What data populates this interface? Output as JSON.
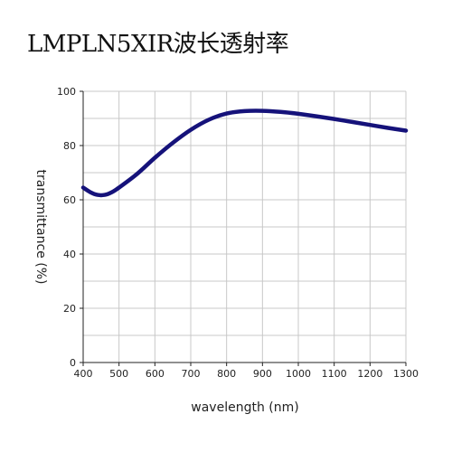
{
  "title": "LMPLN5XIR波长透射率",
  "chart_data": {
    "type": "line",
    "title": "LMPLN5XIR波长透射率",
    "xlabel": "wavelength (nm)",
    "ylabel": "transmittance (%)",
    "xlim": [
      400,
      1300
    ],
    "ylim": [
      0,
      100
    ],
    "xticks": [
      400,
      500,
      600,
      700,
      800,
      900,
      1000,
      1100,
      1200,
      1300
    ],
    "yticks": [
      0,
      20,
      40,
      60,
      80,
      100
    ],
    "grid": true,
    "colors": {
      "line": "#15127a",
      "grid": "#c8c8c8",
      "axis": "#222222"
    },
    "series": [
      {
        "x": [
          400,
          420,
          440,
          460,
          480,
          500,
          550,
          600,
          650,
          700,
          750,
          800,
          850,
          900,
          950,
          1000,
          1050,
          1100,
          1150,
          1200,
          1250,
          1300
        ],
        "y": [
          64.5,
          62.8,
          61.8,
          61.8,
          62.8,
          64.5,
          69.5,
          75.5,
          81.0,
          85.8,
          89.5,
          91.8,
          92.7,
          92.8,
          92.4,
          91.7,
          90.8,
          89.8,
          88.7,
          87.6,
          86.5,
          85.5
        ]
      }
    ]
  }
}
